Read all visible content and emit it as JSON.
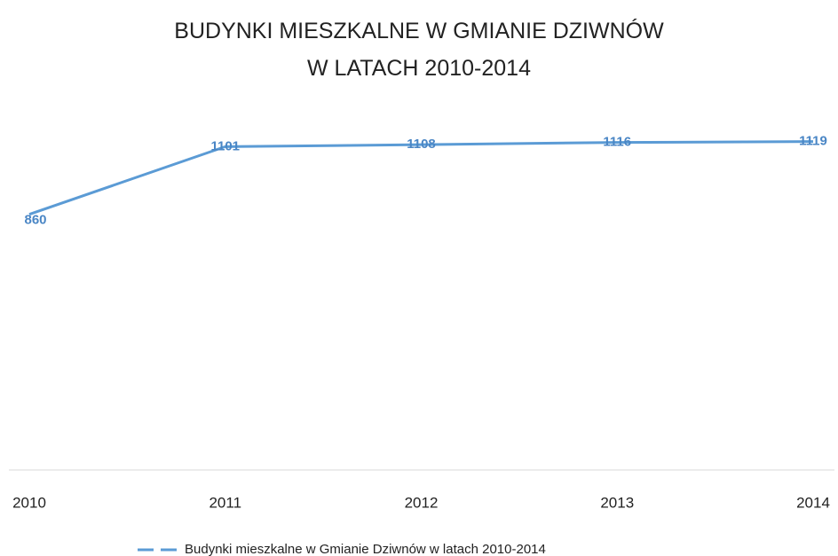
{
  "chart_data": {
    "type": "line",
    "title": "BUDYNKI MIESZKALNE W GMIANIE DZIWNÓW\nW LATACH 2010-2014",
    "categories": [
      "2010",
      "2011",
      "2012",
      "2013",
      "2014"
    ],
    "series": [
      {
        "name": "Budynki mieszkalne w Gmianie Dziwnów w latach 2010-2014",
        "color": "#5b9bd5",
        "values": [
          860,
          1101,
          1108,
          1116,
          1119
        ]
      }
    ],
    "ylim": [
      -50,
      1200
    ]
  }
}
